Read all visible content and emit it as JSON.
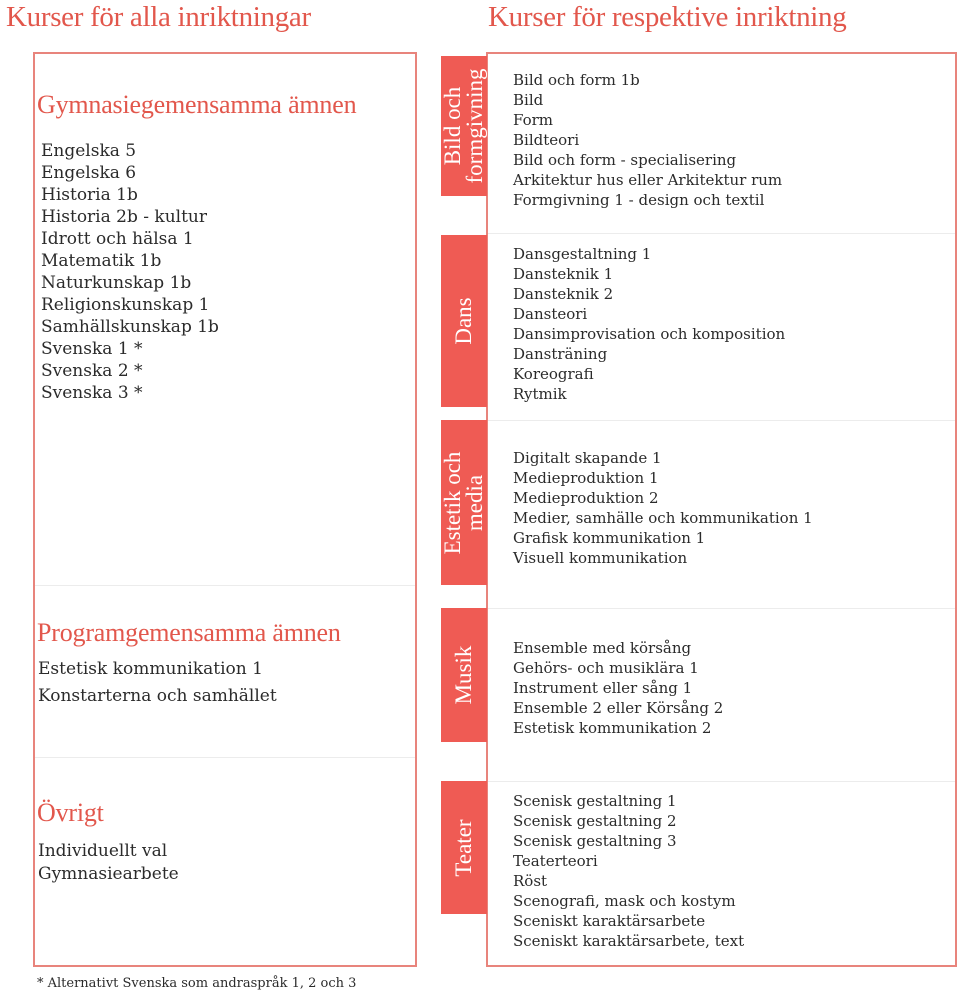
{
  "headers": {
    "left": "Kurser för alla inriktningar",
    "right": "Kurser för respektive inriktning"
  },
  "left": {
    "gymnasie": {
      "title": "Gymnasiegemensamma ämnen",
      "items": [
        "Engelska 5",
        "Engelska 6",
        "Historia 1b",
        "Historia 2b - kultur",
        "Idrott och hälsa 1",
        "Matematik 1b",
        "Naturkunskap 1b",
        "Religionskunskap 1",
        "Samhällskunskap 1b",
        "Svenska 1 *",
        "Svenska 2 *",
        "Svenska 3 *"
      ]
    },
    "program": {
      "title": "Programgemensamma ämnen",
      "items": [
        "Estetisk kommunikation 1",
        "Konstarterna och samhället"
      ]
    },
    "ovrigt": {
      "title": "Övrigt",
      "items": [
        "Individuellt val",
        "Gymnasiearbete"
      ]
    }
  },
  "right": {
    "bild": {
      "tab": [
        "Bild och",
        "formgivning"
      ],
      "items": [
        "Bild och form 1b",
        "Bild",
        "Form",
        "Bildteori",
        "Bild och form - specialisering",
        "Arkitektur hus eller Arkitektur rum",
        "Formgivning 1 - design och textil"
      ]
    },
    "dans": {
      "tab": [
        "Dans"
      ],
      "items": [
        "Dansgestaltning 1",
        "Dansteknik 1",
        "Dansteknik 2",
        "Dansteori",
        "Dansimprovisation och komposition",
        "Dansträning",
        "Koreografi",
        "Rytmik"
      ]
    },
    "estetik": {
      "tab": [
        "Estetik och",
        "media"
      ],
      "items": [
        "Digitalt skapande 1",
        "Medieproduktion 1",
        "Medieproduktion 2",
        "Medier, samhälle och kommunikation 1",
        "Grafisk kommunikation 1",
        "Visuell kommunikation"
      ]
    },
    "musik": {
      "tab": [
        "Musik"
      ],
      "items": [
        "Ensemble med körsång",
        "Gehörs- och musiklära 1",
        "Instrument eller sång 1",
        "Ensemble 2 eller Körsång 2",
        "Estetisk kommunikation 2"
      ]
    },
    "teater": {
      "tab": [
        "Teater"
      ],
      "items": [
        "Scenisk gestaltning 1",
        "Scenisk gestaltning 2",
        "Scenisk gestaltning 3",
        "Teaterteori",
        "Röst",
        "Scenografi, mask och kostym",
        "Sceniskt karaktärsarbete",
        "Sceniskt karaktärsarbete, text"
      ]
    }
  },
  "footnote": "* Alternativt Svenska som andraspråk 1, 2 och 3",
  "colors": {
    "accent": "#e2574c",
    "tab": "#ef5b54",
    "border": "#e8847c"
  }
}
